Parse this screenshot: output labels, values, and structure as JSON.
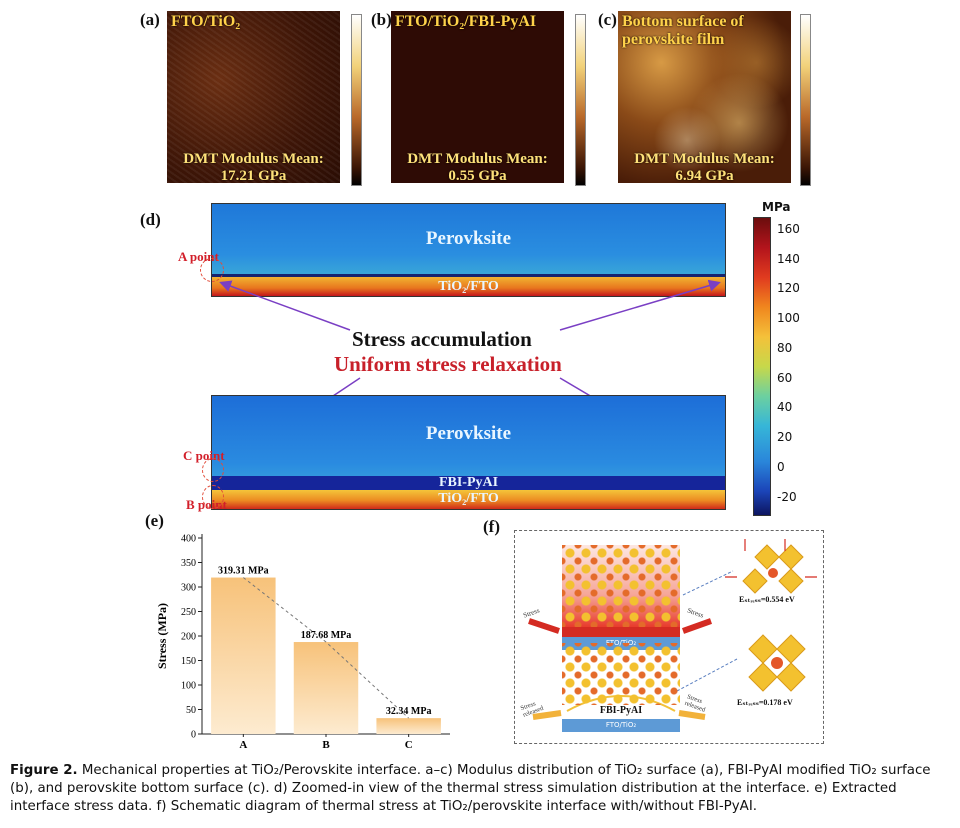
{
  "panel_a": {
    "label": "(a)",
    "title": "FTO/TiO₂",
    "mean_label": "DMT Modulus Mean:",
    "mean_value": "17.21 GPa"
  },
  "panel_b": {
    "label": "(b)",
    "title": "FTO/TiO₂/FBI-PyAI",
    "mean_label": "DMT Modulus Mean:",
    "mean_value": "0.55 GPa"
  },
  "panel_c": {
    "label": "(c)",
    "title_line1": "Bottom surface of",
    "title_line2": "perovskite film",
    "mean_label": "DMT Modulus Mean:",
    "mean_value": "6.94 GPa"
  },
  "panel_d": {
    "label": "(d)",
    "top": {
      "layer1": "Perovksite",
      "layer2": "TiO₂/FTO",
      "point": "A point"
    },
    "bottom": {
      "layer1": "Perovksite",
      "layer2": "FBI-PyAI",
      "layer3": "TiO₂/FTO",
      "point_c": "C point",
      "point_b": "B point"
    },
    "text_accum": "Stress accumulation",
    "text_relax": "Uniform stress relaxation",
    "legend": {
      "unit": "MPa",
      "ticks": [
        "160",
        "140",
        "120",
        "100",
        "80",
        "60",
        "40",
        "20",
        "0",
        "-20"
      ]
    }
  },
  "panel_e": {
    "label": "(e)"
  },
  "panel_f": {
    "label": "(f)",
    "top_substrate": "FTO/TiO₂",
    "stress_left": "Stress",
    "stress_right": "Stress",
    "energy_top": "Eₛₜᵣₑₛₛ=0.554 eV",
    "energy_bottom": "Eₛₜᵣₑₛₛ=0.178 eV",
    "bottom_layer": "FBI-PyAI",
    "bottom_substrate": "FTO/TiO₂",
    "released_left": "Stress released",
    "released_right": "Stress released"
  },
  "caption": {
    "lead": "Figure 2.",
    "text": "Mechanical properties at TiO₂/Perovskite interface. a–c) Modulus distribution of TiO₂ surface (a), FBI-PyAI modified TiO₂ surface (b), and perovskite bottom surface (c). d) Zoomed-in view of the thermal stress simulation distribution at the interface. e) Extracted interface stress data. f) Schematic diagram of thermal stress at TiO₂/perovskite interface with/without FBI-PyAI."
  },
  "chart_data": {
    "type": "bar",
    "categories": [
      "A",
      "B",
      "C"
    ],
    "values": [
      319.31,
      187.68,
      32.34
    ],
    "data_labels": [
      "319.31 MPa",
      "187.68 MPa",
      "32.34 MPa"
    ],
    "ylabel": "Stress (MPa)",
    "xlabel": "",
    "ylim": [
      0,
      400
    ],
    "yticks": [
      0,
      50,
      100,
      150,
      200,
      250,
      300,
      350,
      400
    ],
    "grid": false,
    "trend_line": "dashed"
  },
  "colors": {
    "bar_top": "#f7c27a",
    "bar_bottom": "#fdebd0",
    "sim_blue": "#1e6fd6",
    "accent_red": "#c8202a",
    "arrow_purple": "#7a3fc4"
  }
}
